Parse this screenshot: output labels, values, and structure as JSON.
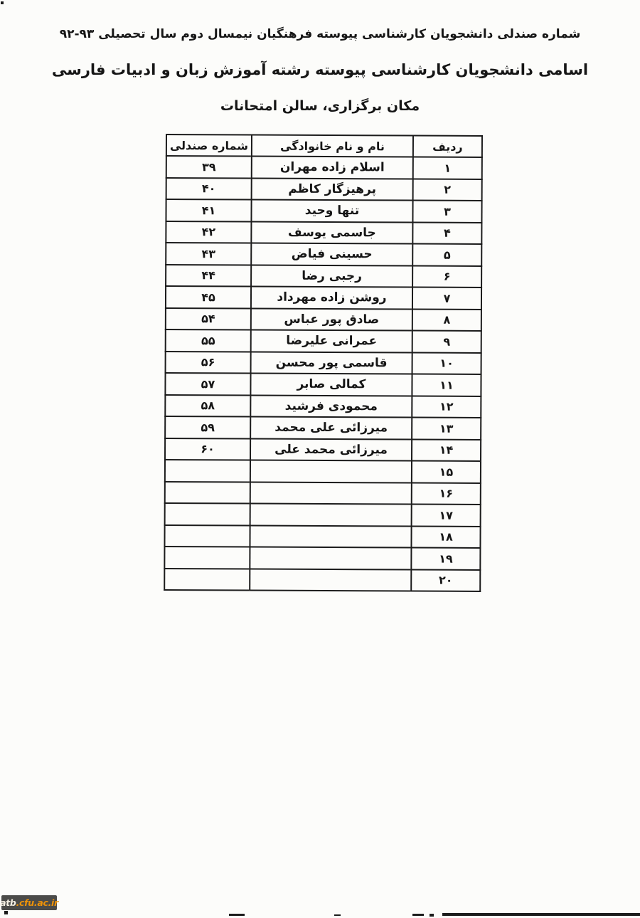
{
  "document": {
    "header_line": "شماره صندلی دانشجویان کارشناسی پیوسته فرهنگیان نیمسال دوم سال تحصیلی ۹۳-۹۲",
    "title": "اسامی دانشجویان کارشناسی پیوسته رشته آموزش زبان و ادبیات فارسی",
    "venue": "مکان برگزاری، سالن امتحانات"
  },
  "table": {
    "columns": [
      {
        "key": "radif",
        "label": "ردیف"
      },
      {
        "key": "name",
        "label": "نام و نام خانوادگی"
      },
      {
        "key": "seat",
        "label": "شماره صندلی"
      }
    ],
    "rows": [
      {
        "radif": "۱",
        "name": "اسلام زاده مهران",
        "seat": "۳۹"
      },
      {
        "radif": "۲",
        "name": "پرهیزگار کاظم",
        "seat": "۴۰"
      },
      {
        "radif": "۳",
        "name": "تنها وحید",
        "seat": "۴۱"
      },
      {
        "radif": "۴",
        "name": "جاسمی یوسف",
        "seat": "۴۲"
      },
      {
        "radif": "۵",
        "name": "حسینی فیاض",
        "seat": "۴۳"
      },
      {
        "radif": "۶",
        "name": "رجبی رضا",
        "seat": "۴۴"
      },
      {
        "radif": "۷",
        "name": "روشن زاده مهرداد",
        "seat": "۴۵"
      },
      {
        "radif": "۸",
        "name": "صادق پور عباس",
        "seat": "۵۴"
      },
      {
        "radif": "۹",
        "name": "عمرانی علیرضا",
        "seat": "۵۵"
      },
      {
        "radif": "۱۰",
        "name": "قاسمی پور محسن",
        "seat": "۵۶"
      },
      {
        "radif": "۱۱",
        "name": "کمالی صابر",
        "seat": "۵۷"
      },
      {
        "radif": "۱۲",
        "name": "محمودی فرشید",
        "seat": "۵۸"
      },
      {
        "radif": "۱۳",
        "name": "میرزائی علی محمد",
        "seat": "۵۹"
      },
      {
        "radif": "۱۴",
        "name": "میرزائی محمد علی",
        "seat": "۶۰"
      },
      {
        "radif": "۱۵",
        "name": "",
        "seat": ""
      },
      {
        "radif": "۱۶",
        "name": "",
        "seat": ""
      },
      {
        "radif": "۱۷",
        "name": "",
        "seat": ""
      },
      {
        "radif": "۱۸",
        "name": "",
        "seat": ""
      },
      {
        "radif": "۱۹",
        "name": "",
        "seat": ""
      },
      {
        "radif": "۲۰",
        "name": "",
        "seat": ""
      }
    ]
  },
  "watermark": {
    "prefix": "atb",
    "suffix": ".cfu.ac.ir",
    "bg_color": "#4b4b49",
    "prefix_color": "#f4efe3",
    "suffix_color": "#ee9309"
  },
  "ink_color": "#161616"
}
